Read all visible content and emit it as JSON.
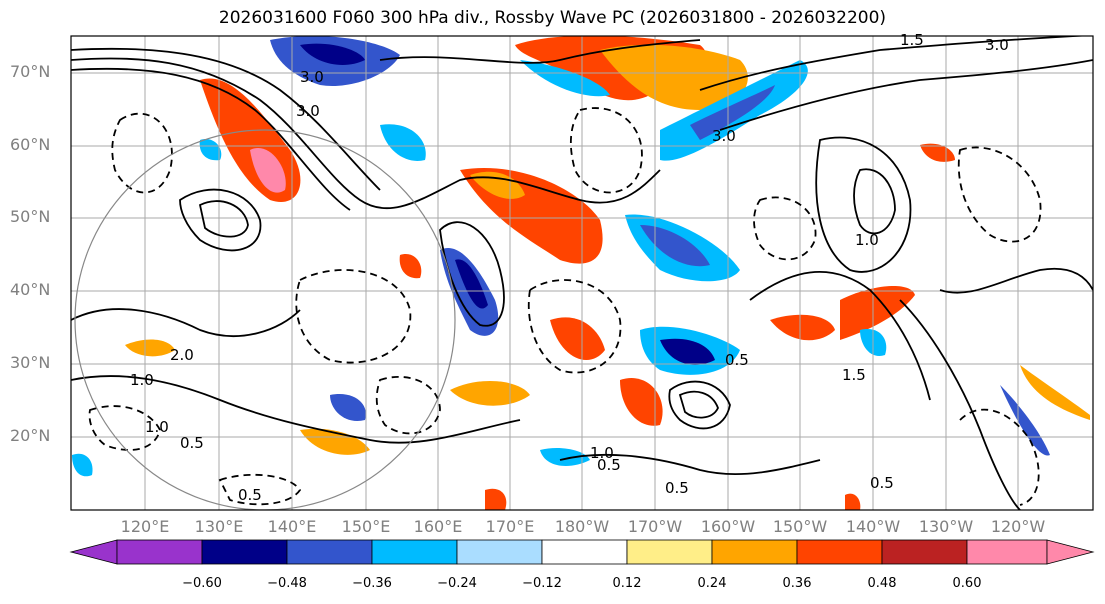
{
  "title": "2026031600 F060 300 hPa div., Rossby Wave PC (2026031800 - 2026032200)",
  "lat_labels": [
    "70°N",
    "60°N",
    "50°N",
    "40°N",
    "30°N",
    "20°N"
  ],
  "lon_labels": [
    "120°E",
    "130°E",
    "140°E",
    "150°E",
    "160°E",
    "170°E",
    "180°W",
    "170°W",
    "160°W",
    "150°W",
    "140°W",
    "130°W",
    "120°W"
  ],
  "colorbar": {
    "labels": [
      "−0.60",
      "−0.48",
      "−0.36",
      "−0.24",
      "−0.12",
      "0.12",
      "0.24",
      "0.36",
      "0.48",
      "0.60"
    ],
    "colors": [
      "#9933cc",
      "#000088",
      "#3355cc",
      "#00bbff",
      "#aaddff",
      "#ffffff",
      "#ffee88",
      "#ffa500",
      "#ff4400",
      "#bb2222",
      "#ff88aa"
    ]
  },
  "contour_labels": [
    "3.0",
    "3.0",
    "3.0",
    "1.5",
    "3.0",
    "1.0",
    "1.0",
    "0.5",
    "0.5",
    "0.5",
    "2.0",
    "1.0",
    "0.5",
    "0.5",
    "1.5",
    "1.0",
    "0.5"
  ]
}
